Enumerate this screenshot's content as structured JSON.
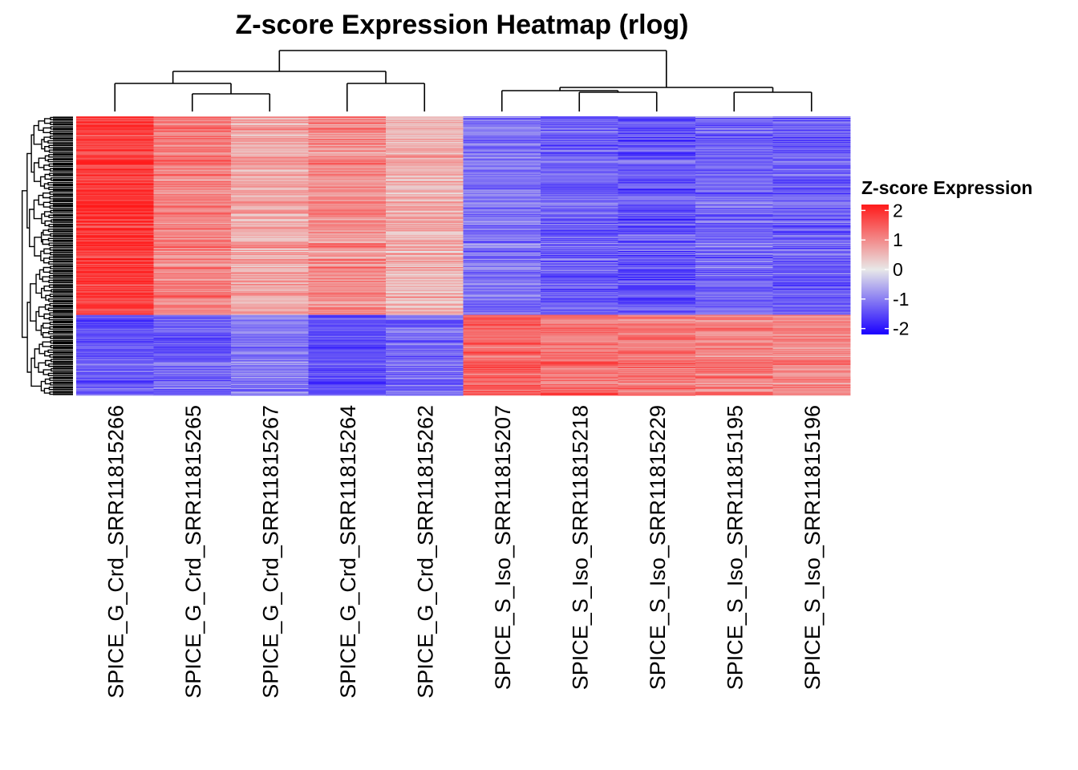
{
  "chart_data": {
    "type": "heatmap",
    "title": "Z-score Expression Heatmap (rlog)",
    "columns": [
      "SPICE_G_Crd_SRR11815266",
      "SPICE_G_Crd_SRR11815265",
      "SPICE_G_Crd_SRR11815267",
      "SPICE_G_Crd_SRR11815264",
      "SPICE_G_Crd_SRR11815262",
      "SPICE_S_Iso_SRR11815207",
      "SPICE_S_Iso_SRR11815218",
      "SPICE_S_Iso_SRR11815229",
      "SPICE_S_Iso_SRR11815195",
      "SPICE_S_Iso_SRR11815196"
    ],
    "row_count": 350,
    "row_blocks": [
      {
        "name": "upper-block",
        "fraction": 0.71,
        "mean_z": [
          1.9,
          1.1,
          0.7,
          1.0,
          0.6,
          -1.1,
          -1.3,
          -1.4,
          -1.2,
          -1.3
        ]
      },
      {
        "name": "lower-block",
        "fraction": 0.29,
        "mean_z": [
          -1.4,
          -1.3,
          -1.1,
          -1.5,
          -1.2,
          1.4,
          1.3,
          1.2,
          1.1,
          1.0
        ]
      }
    ],
    "legend": {
      "title": "Z-score Expression",
      "ticks": [
        "2",
        "1",
        "0",
        "-1",
        "-2"
      ],
      "range": [
        -2.2,
        2.2
      ],
      "colors": {
        "low": "#1a00ff",
        "mid": "#e8e8e8",
        "high": "#ff1a1a"
      }
    },
    "column_dendrogram": "((266,(265,267)),(264,262)),((207,(218,229)),(195,196))",
    "row_dendrogram": true
  }
}
